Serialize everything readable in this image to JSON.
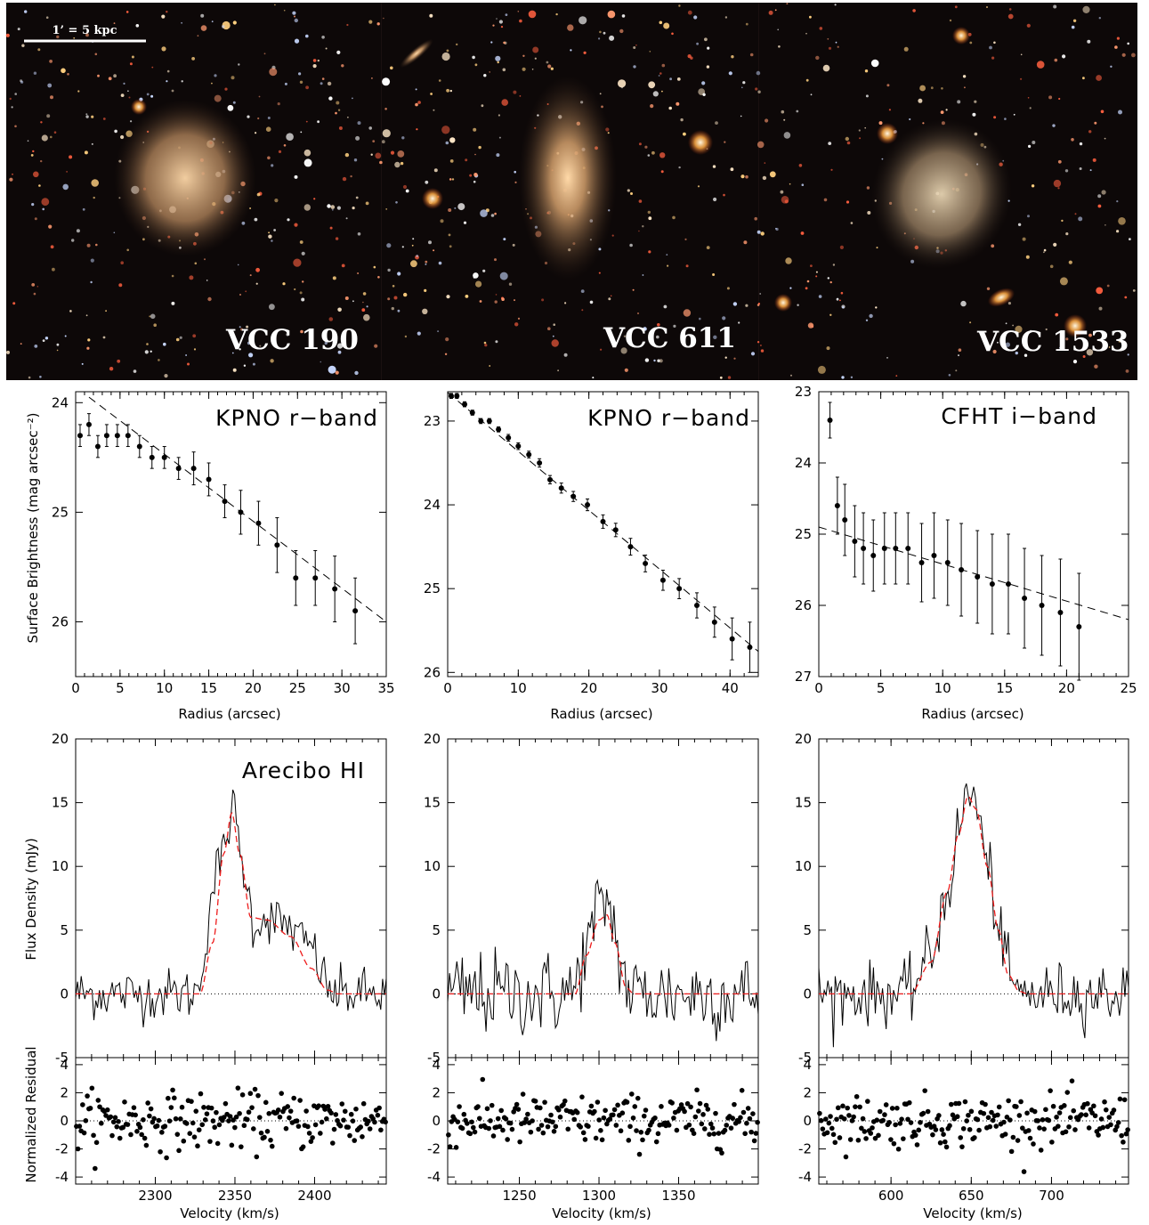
{
  "images": {
    "scale_bar_label": "1’ = 5 kpc",
    "galaxies": [
      {
        "name": "VCC 190"
      },
      {
        "name": "VCC 611"
      },
      {
        "name": "VCC 1533"
      }
    ],
    "colors": {
      "background": "#0d0808",
      "glow": "#d9b08a"
    }
  },
  "chart_data": [
    {
      "type": "scatter",
      "title": "KPNO r−band",
      "xlabel": "Radius (arcsec)",
      "ylabel": "Surface Brightness (mag arcsec⁻²)",
      "xlim": [
        0,
        35
      ],
      "ylim": [
        26.5,
        23.9
      ],
      "y_inverted": true,
      "xticks": [
        0,
        5,
        10,
        15,
        20,
        25,
        30,
        35
      ],
      "yticks": [
        24,
        25,
        26
      ],
      "points": [
        {
          "x": 0.5,
          "y": 24.3,
          "err": 0.1
        },
        {
          "x": 1.5,
          "y": 24.2,
          "err": 0.1
        },
        {
          "x": 2.5,
          "y": 24.4,
          "err": 0.1
        },
        {
          "x": 3.5,
          "y": 24.3,
          "err": 0.1
        },
        {
          "x": 4.7,
          "y": 24.3,
          "err": 0.1
        },
        {
          "x": 5.9,
          "y": 24.3,
          "err": 0.1
        },
        {
          "x": 7.2,
          "y": 24.4,
          "err": 0.1
        },
        {
          "x": 8.6,
          "y": 24.5,
          "err": 0.1
        },
        {
          "x": 10.0,
          "y": 24.5,
          "err": 0.1
        },
        {
          "x": 11.6,
          "y": 24.6,
          "err": 0.1
        },
        {
          "x": 13.3,
          "y": 24.6,
          "err": 0.15
        },
        {
          "x": 15.0,
          "y": 24.7,
          "err": 0.15
        },
        {
          "x": 16.8,
          "y": 24.9,
          "err": 0.15
        },
        {
          "x": 18.6,
          "y": 25.0,
          "err": 0.2
        },
        {
          "x": 20.6,
          "y": 25.1,
          "err": 0.2
        },
        {
          "x": 22.7,
          "y": 25.3,
          "err": 0.25
        },
        {
          "x": 24.8,
          "y": 25.6,
          "err": 0.25
        },
        {
          "x": 27.0,
          "y": 25.6,
          "err": 0.25
        },
        {
          "x": 29.2,
          "y": 25.7,
          "err": 0.3
        },
        {
          "x": 31.5,
          "y": 25.9,
          "err": 0.3
        }
      ],
      "fit_line": {
        "x": [
          1.5,
          35
        ],
        "y": [
          23.95,
          26.0
        ],
        "style": "dashed"
      }
    },
    {
      "type": "scatter",
      "title": "KPNO r−band",
      "xlabel": "Radius (arcsec)",
      "ylabel": "",
      "xlim": [
        0,
        44
      ],
      "ylim": [
        26.05,
        22.65
      ],
      "y_inverted": true,
      "xticks": [
        0,
        10,
        20,
        30,
        40
      ],
      "yticks": [
        23,
        24,
        25,
        26
      ],
      "points": [
        {
          "x": 0.5,
          "y": 22.7,
          "err": 0.03
        },
        {
          "x": 1.3,
          "y": 22.7,
          "err": 0.03
        },
        {
          "x": 2.4,
          "y": 22.8,
          "err": 0.03
        },
        {
          "x": 3.5,
          "y": 22.9,
          "err": 0.03
        },
        {
          "x": 4.7,
          "y": 23.0,
          "err": 0.03
        },
        {
          "x": 5.9,
          "y": 23.0,
          "err": 0.03
        },
        {
          "x": 7.2,
          "y": 23.1,
          "err": 0.03
        },
        {
          "x": 8.6,
          "y": 23.2,
          "err": 0.04
        },
        {
          "x": 10.0,
          "y": 23.3,
          "err": 0.04
        },
        {
          "x": 11.5,
          "y": 23.4,
          "err": 0.04
        },
        {
          "x": 13.0,
          "y": 23.5,
          "err": 0.05
        },
        {
          "x": 14.5,
          "y": 23.7,
          "err": 0.05
        },
        {
          "x": 16.1,
          "y": 23.8,
          "err": 0.06
        },
        {
          "x": 17.8,
          "y": 23.9,
          "err": 0.06
        },
        {
          "x": 19.8,
          "y": 24.0,
          "err": 0.07
        },
        {
          "x": 22.0,
          "y": 24.2,
          "err": 0.08
        },
        {
          "x": 23.8,
          "y": 24.3,
          "err": 0.08
        },
        {
          "x": 25.9,
          "y": 24.5,
          "err": 0.1
        },
        {
          "x": 28.0,
          "y": 24.7,
          "err": 0.1
        },
        {
          "x": 30.5,
          "y": 24.9,
          "err": 0.12
        },
        {
          "x": 32.8,
          "y": 25.0,
          "err": 0.12
        },
        {
          "x": 35.3,
          "y": 25.2,
          "err": 0.15
        },
        {
          "x": 37.8,
          "y": 25.4,
          "err": 0.18
        },
        {
          "x": 40.3,
          "y": 25.6,
          "err": 0.25
        },
        {
          "x": 42.8,
          "y": 25.7,
          "err": 0.3
        }
      ],
      "fit_line": {
        "x": [
          0,
          44
        ],
        "y": [
          22.66,
          25.75
        ],
        "style": "dashed"
      }
    },
    {
      "type": "scatter",
      "title": "CFHT i−band",
      "xlabel": "Radius (arcsec)",
      "ylabel": "",
      "xlim": [
        0,
        25
      ],
      "ylim": [
        27.0,
        23.0
      ],
      "y_inverted": true,
      "xticks": [
        0,
        5,
        10,
        15,
        20,
        25
      ],
      "yticks": [
        23,
        24,
        25,
        26,
        27
      ],
      "points": [
        {
          "x": 0.9,
          "y": 23.4,
          "err": 0.25
        },
        {
          "x": 1.5,
          "y": 24.6,
          "err": 0.4
        },
        {
          "x": 2.1,
          "y": 24.8,
          "err": 0.5
        },
        {
          "x": 2.9,
          "y": 25.1,
          "err": 0.5
        },
        {
          "x": 3.6,
          "y": 25.2,
          "err": 0.5
        },
        {
          "x": 4.4,
          "y": 25.3,
          "err": 0.5
        },
        {
          "x": 5.3,
          "y": 25.2,
          "err": 0.5
        },
        {
          "x": 6.2,
          "y": 25.2,
          "err": 0.5
        },
        {
          "x": 7.2,
          "y": 25.2,
          "err": 0.5
        },
        {
          "x": 8.3,
          "y": 25.4,
          "err": 0.55
        },
        {
          "x": 9.3,
          "y": 25.3,
          "err": 0.6
        },
        {
          "x": 10.4,
          "y": 25.4,
          "err": 0.6
        },
        {
          "x": 11.5,
          "y": 25.5,
          "err": 0.65
        },
        {
          "x": 12.8,
          "y": 25.6,
          "err": 0.65
        },
        {
          "x": 14.0,
          "y": 25.7,
          "err": 0.7
        },
        {
          "x": 15.3,
          "y": 25.7,
          "err": 0.7
        },
        {
          "x": 16.6,
          "y": 25.9,
          "err": 0.7
        },
        {
          "x": 18.0,
          "y": 26.0,
          "err": 0.7
        },
        {
          "x": 19.5,
          "y": 26.1,
          "err": 0.75
        },
        {
          "x": 21.0,
          "y": 26.3,
          "err": 0.75
        }
      ],
      "fit_line": {
        "x": [
          0,
          25
        ],
        "y": [
          24.9,
          26.2
        ],
        "style": "dashed"
      }
    },
    {
      "type": "line",
      "title": "Arecibo HI",
      "xlabel": "",
      "ylabel": "Flux Density (mJy)",
      "xlim": [
        2250,
        2445
      ],
      "ylim": [
        -5,
        20
      ],
      "xticks": [
        2300,
        2350,
        2400
      ],
      "yticks": [
        -5,
        0,
        5,
        10,
        15,
        20
      ],
      "spectrum_nodes": [
        [
          2250,
          0
        ],
        [
          2325,
          0
        ],
        [
          2340,
          10
        ],
        [
          2349,
          14.4
        ],
        [
          2355,
          10
        ],
        [
          2362,
          5.5
        ],
        [
          2370,
          6
        ],
        [
          2380,
          5.5
        ],
        [
          2395,
          4
        ],
        [
          2412,
          0
        ],
        [
          2445,
          0
        ]
      ],
      "noise_rms": 1.0,
      "model_nodes": [
        [
          2250,
          0
        ],
        [
          2328,
          0
        ],
        [
          2336,
          4
        ],
        [
          2343,
          11
        ],
        [
          2348,
          14.2
        ],
        [
          2353,
          11
        ],
        [
          2360,
          6
        ],
        [
          2370,
          5.8
        ],
        [
          2385,
          4.5
        ],
        [
          2398,
          2
        ],
        [
          2408,
          0.3
        ],
        [
          2415,
          0
        ],
        [
          2445,
          0
        ]
      ],
      "model_color": "#ee1c1c"
    },
    {
      "type": "line",
      "title": "",
      "xlabel": "",
      "ylabel": "",
      "xlim": [
        1205,
        1400
      ],
      "ylim": [
        -5,
        20
      ],
      "xticks": [
        1250,
        1300,
        1350
      ],
      "yticks": [
        -5,
        0,
        5,
        10,
        15,
        20
      ],
      "spectrum_nodes": [
        [
          1205,
          0
        ],
        [
          1283,
          0
        ],
        [
          1292,
          3.5
        ],
        [
          1300,
          6.5
        ],
        [
          1305,
          7.5
        ],
        [
          1310,
          5
        ],
        [
          1315,
          1.5
        ],
        [
          1320,
          0
        ],
        [
          1400,
          0
        ]
      ],
      "noise_rms": 1.7,
      "model_nodes": [
        [
          1205,
          0
        ],
        [
          1285,
          0
        ],
        [
          1292,
          3
        ],
        [
          1300,
          5.8
        ],
        [
          1305,
          6.2
        ],
        [
          1310,
          4
        ],
        [
          1317,
          0.5
        ],
        [
          1322,
          0
        ],
        [
          1400,
          0
        ]
      ],
      "model_color": "#ee1c1c"
    },
    {
      "type": "line",
      "title": "",
      "xlabel": "",
      "ylabel": "",
      "xlim": [
        555,
        748
      ],
      "ylim": [
        -5,
        20
      ],
      "xticks": [
        600,
        650,
        700
      ],
      "yticks": [
        -5,
        0,
        5,
        10,
        15,
        20
      ],
      "spectrum_nodes": [
        [
          555,
          0
        ],
        [
          610,
          0
        ],
        [
          625,
          3
        ],
        [
          635,
          8
        ],
        [
          643,
          13
        ],
        [
          648,
          16
        ],
        [
          653,
          15
        ],
        [
          660,
          10
        ],
        [
          668,
          5
        ],
        [
          673,
          1.5
        ],
        [
          680,
          0
        ],
        [
          748,
          0
        ]
      ],
      "noise_rms": 1.2,
      "model_nodes": [
        [
          555,
          0
        ],
        [
          612,
          0
        ],
        [
          625,
          2.5
        ],
        [
          635,
          8
        ],
        [
          642,
          12.5
        ],
        [
          648,
          15.5
        ],
        [
          653,
          14.5
        ],
        [
          660,
          10
        ],
        [
          667,
          5
        ],
        [
          673,
          1.5
        ],
        [
          680,
          0.2
        ],
        [
          685,
          0
        ],
        [
          748,
          0
        ]
      ],
      "model_color": "#ee1c1c"
    },
    {
      "type": "scatter",
      "title": "",
      "xlabel": "Velocity (km/s)",
      "ylabel": "Normalized Residual",
      "xlim": [
        2250,
        2445
      ],
      "ylim": [
        -4.5,
        4.5
      ],
      "xticks": [
        2300,
        2350,
        2400
      ],
      "yticks": [
        -4,
        -2,
        0,
        2,
        4
      ],
      "n_points": 200,
      "spread": 1.0
    },
    {
      "type": "scatter",
      "title": "",
      "xlabel": "Velocity (km/s)",
      "ylabel": "",
      "xlim": [
        1205,
        1400
      ],
      "ylim": [
        -4.5,
        4.5
      ],
      "xticks": [
        1250,
        1300,
        1350
      ],
      "yticks": [
        -4,
        -2,
        0,
        2,
        4
      ],
      "n_points": 200,
      "spread": 0.9
    },
    {
      "type": "scatter",
      "title": "",
      "xlabel": "Velocity (km/s)",
      "ylabel": "",
      "xlim": [
        555,
        748
      ],
      "ylim": [
        -4.5,
        4.5
      ],
      "xticks": [
        600,
        650,
        700
      ],
      "yticks": [
        -4,
        -2,
        0,
        2,
        4
      ],
      "n_points": 200,
      "spread": 0.9
    }
  ]
}
